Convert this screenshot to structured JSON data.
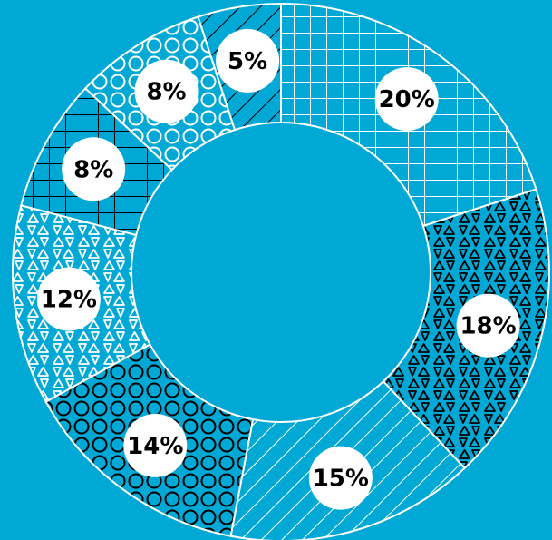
{
  "chart_data": {
    "type": "pie",
    "variant": "donut",
    "title": "",
    "start_angle_deg": 0,
    "direction": "clockwise",
    "slices": [
      {
        "label": "20%",
        "value": 20,
        "fill": "#00a8d6",
        "pattern": "grid",
        "pattern_color": "#ffffff"
      },
      {
        "label": "18%",
        "value": 18,
        "fill": "#00a8d6",
        "pattern": "triangles",
        "pattern_color": "#000000"
      },
      {
        "label": "15%",
        "value": 15,
        "fill": "#00a8d6",
        "pattern": "diagonal-lines",
        "pattern_color": "#ffffff"
      },
      {
        "label": "14%",
        "value": 14,
        "fill": "#00a8d6",
        "pattern": "circles",
        "pattern_color": "#000000"
      },
      {
        "label": "12%",
        "value": 12,
        "fill": "#00a8d6",
        "pattern": "triangles",
        "pattern_color": "#ffffff"
      },
      {
        "label": "8%",
        "value": 8,
        "fill": "#00a8d6",
        "pattern": "grid",
        "pattern_color": "#000000"
      },
      {
        "label": "8%",
        "value": 8,
        "fill": "#00a8d6",
        "pattern": "circles",
        "pattern_color": "#ffffff"
      },
      {
        "label": "5%",
        "value": 5,
        "fill": "#00a8d6",
        "pattern": "diagonal-lines",
        "pattern_color": "#000000"
      }
    ],
    "label_style": "white-circle-badge",
    "colors": {
      "background": "#00a8d6",
      "badge": "#ffffff",
      "label_text": "#000000",
      "slice_border": "#ffffff"
    }
  }
}
